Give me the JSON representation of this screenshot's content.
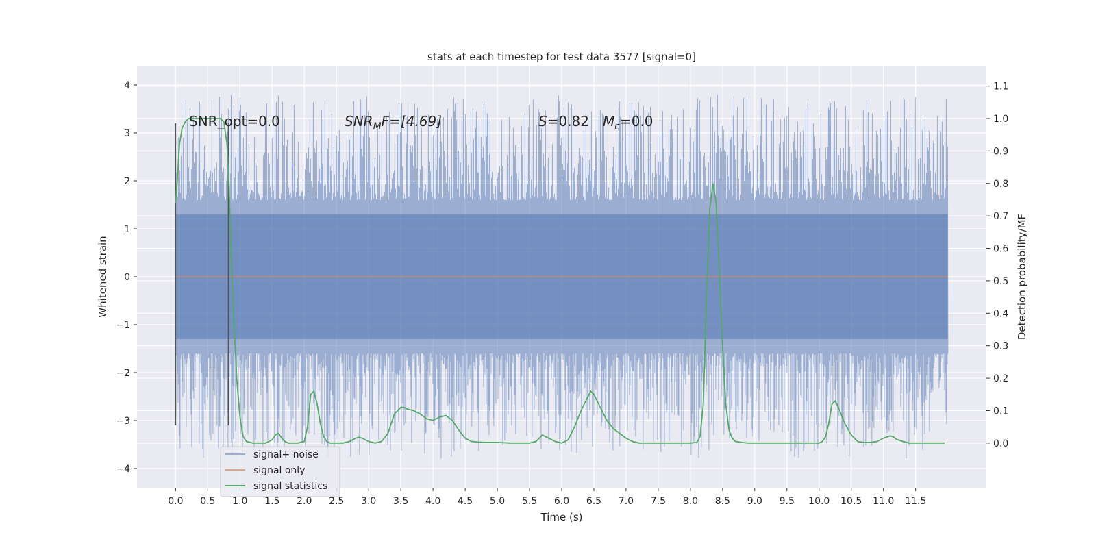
{
  "chart_data": {
    "type": "line",
    "title": "stats at each timestep for test data 3577 [signal=0]",
    "xlabel": "Time (s)",
    "ylabel": "Whitened strain",
    "y2label": "Detection probability/MF",
    "xlim": [
      -0.6,
      12.6
    ],
    "ylim": [
      -4.4,
      4.4
    ],
    "y2lim": [
      -0.1375,
      1.1625
    ],
    "x_ticks": [
      0.0,
      0.5,
      1.0,
      1.5,
      2.0,
      2.5,
      3.0,
      3.5,
      4.0,
      4.5,
      5.0,
      5.5,
      6.0,
      6.5,
      7.0,
      7.5,
      8.0,
      8.5,
      9.0,
      9.5,
      10.0,
      10.5,
      11.0,
      11.5
    ],
    "x_tick_labels": [
      "0.0",
      "0.5",
      "1.0",
      "1.5",
      "2.0",
      "2.5",
      "3.0",
      "3.5",
      "4.0",
      "4.5",
      "5.0",
      "5.5",
      "6.0",
      "6.5",
      "7.0",
      "7.5",
      "8.0",
      "8.5",
      "9.0",
      "9.5",
      "10.0",
      "10.5",
      "11.0",
      "11.5"
    ],
    "y_ticks": [
      -4,
      -3,
      -2,
      -1,
      0,
      1,
      2,
      3,
      4
    ],
    "y_tick_labels": [
      "−4",
      "−3",
      "−2",
      "−1",
      "0",
      "1",
      "2",
      "3",
      "4"
    ],
    "y2_ticks": [
      0.0,
      0.1,
      0.2,
      0.3,
      0.4,
      0.5,
      0.6,
      0.7,
      0.8,
      0.9,
      1.0,
      1.1
    ],
    "y2_tick_labels": [
      "0.0",
      "0.1",
      "0.2",
      "0.3",
      "0.4",
      "0.5",
      "0.6",
      "0.7",
      "0.8",
      "0.9",
      "1.0",
      "1.1"
    ],
    "grid": true,
    "legend_position": "lower-left",
    "series": [
      {
        "name": "signal+ noise",
        "color": "#4C72B0",
        "opacity": 0.5,
        "axis": "left",
        "kind": "noise-band",
        "x_range": [
          0.0,
          12.0
        ],
        "core_amplitude": 1.3,
        "peak_range": [
          -4.0,
          4.1
        ]
      },
      {
        "name": "signal only",
        "color": "#DD8452",
        "axis": "left",
        "x": [
          0.0,
          12.0
        ],
        "y": [
          0.0,
          0.0
        ]
      },
      {
        "name": "signal statistics",
        "color": "#55A868",
        "axis": "right",
        "x": [
          0.0,
          0.03,
          0.06,
          0.1,
          0.15,
          0.2,
          0.3,
          0.4,
          0.5,
          0.6,
          0.65,
          0.7,
          0.75,
          0.8,
          0.83,
          0.86,
          0.9,
          0.95,
          1.0,
          1.05,
          1.1,
          1.2,
          1.3,
          1.4,
          1.5,
          1.55,
          1.6,
          1.65,
          1.7,
          1.75,
          1.8,
          1.9,
          2.0,
          2.05,
          2.1,
          2.15,
          2.2,
          2.25,
          2.3,
          2.35,
          2.4,
          2.5,
          2.6,
          2.7,
          2.8,
          2.85,
          2.9,
          3.0,
          3.1,
          3.2,
          3.3,
          3.35,
          3.4,
          3.5,
          3.55,
          3.6,
          3.7,
          3.8,
          3.9,
          4.0,
          4.1,
          4.2,
          4.3,
          4.4,
          4.5,
          4.6,
          4.7,
          4.8,
          4.9,
          5.0,
          5.2,
          5.4,
          5.5,
          5.6,
          5.65,
          5.7,
          5.75,
          5.8,
          5.9,
          6.0,
          6.1,
          6.2,
          6.3,
          6.4,
          6.45,
          6.5,
          6.6,
          6.7,
          6.8,
          6.9,
          7.0,
          7.1,
          7.2,
          7.3,
          7.5,
          7.7,
          7.9,
          8.0,
          8.1,
          8.15,
          8.2,
          8.25,
          8.3,
          8.35,
          8.4,
          8.45,
          8.5,
          8.55,
          8.6,
          8.65,
          8.7,
          8.8,
          8.9,
          9.0,
          9.2,
          9.5,
          9.8,
          10.0,
          10.05,
          10.1,
          10.15,
          10.2,
          10.25,
          10.3,
          10.4,
          10.5,
          10.6,
          10.7,
          10.8,
          10.9,
          11.0,
          11.1,
          11.15,
          11.2,
          11.3,
          11.4,
          11.5,
          11.6,
          11.7,
          11.8,
          11.9,
          11.95
        ],
        "y": [
          0.74,
          0.82,
          0.92,
          0.97,
          0.99,
          1.0,
          1.0,
          1.0,
          1.0,
          1.0,
          1.0,
          1.0,
          0.99,
          0.92,
          0.8,
          0.6,
          0.4,
          0.2,
          0.08,
          0.02,
          0.005,
          0.0,
          0.0,
          0.0,
          0.01,
          0.025,
          0.03,
          0.015,
          0.005,
          0.0,
          0.0,
          0.0,
          0.005,
          0.05,
          0.15,
          0.16,
          0.12,
          0.06,
          0.02,
          0.005,
          0.0,
          0.0,
          0.0,
          0.005,
          0.015,
          0.018,
          0.015,
          0.005,
          0.0,
          0.005,
          0.03,
          0.06,
          0.09,
          0.11,
          0.11,
          0.105,
          0.1,
          0.09,
          0.075,
          0.07,
          0.08,
          0.085,
          0.07,
          0.04,
          0.015,
          0.005,
          0.003,
          0.002,
          0.002,
          0.002,
          0.0,
          0.0,
          0.0,
          0.005,
          0.015,
          0.025,
          0.02,
          0.015,
          0.005,
          0.0,
          0.01,
          0.05,
          0.1,
          0.14,
          0.16,
          0.15,
          0.11,
          0.07,
          0.045,
          0.03,
          0.015,
          0.005,
          0.0,
          0.0,
          0.0,
          0.0,
          0.0,
          0.0,
          0.002,
          0.02,
          0.12,
          0.45,
          0.72,
          0.8,
          0.74,
          0.52,
          0.3,
          0.12,
          0.04,
          0.015,
          0.005,
          0.002,
          0.0,
          0.0,
          0.0,
          0.0,
          0.0,
          0.0,
          0.005,
          0.02,
          0.06,
          0.12,
          0.13,
          0.11,
          0.06,
          0.025,
          0.005,
          0.002,
          0.002,
          0.005,
          0.015,
          0.022,
          0.02,
          0.012,
          0.005,
          0.0,
          0.0,
          0.0,
          0.0,
          0.0,
          0.0,
          0.0
        ]
      }
    ],
    "vlines": [
      {
        "x": 0.0,
        "ymin": -3.1,
        "ymax": 3.2,
        "color": "#555555"
      },
      {
        "x": 0.82,
        "ymin": -3.1,
        "ymax": 3.2,
        "color": "#555555"
      }
    ],
    "annotations": {
      "snr_opt": "SNR_opt=0.0",
      "snr_mf": {
        "main": "SNR",
        "sub": "M",
        "rest": "F=[4.69]"
      },
      "s_val": {
        "main": "S",
        "rest": "=0.82"
      },
      "mc": {
        "main": "M",
        "sub": "c",
        "rest": "=0.0"
      }
    }
  }
}
